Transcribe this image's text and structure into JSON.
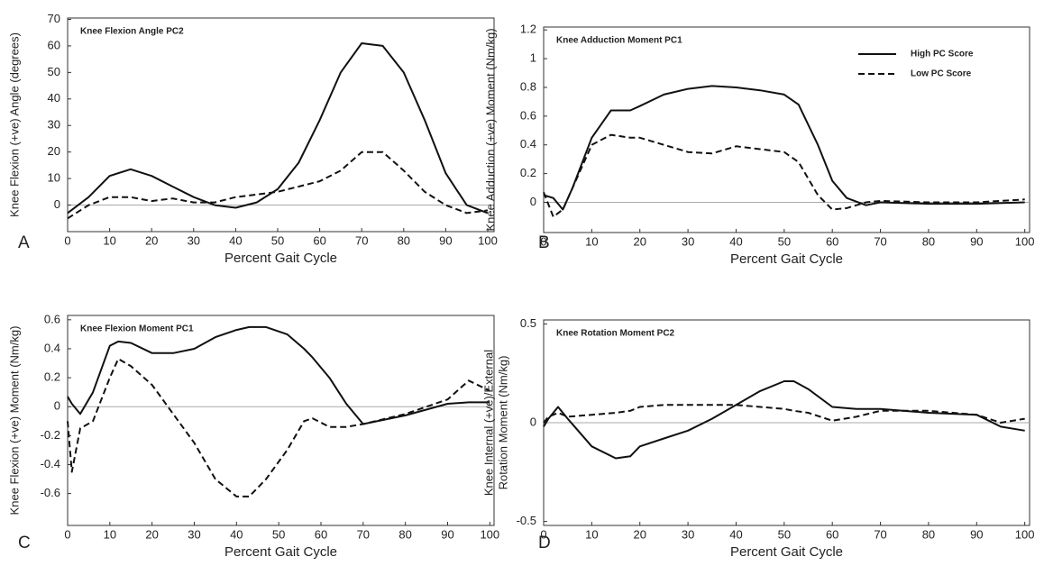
{
  "chart_data": [
    {
      "type": "line",
      "panel_label": "A",
      "title": "Knee Flexion Angle PC2",
      "xlabel": "Percent Gait Cycle",
      "ylabel": [
        "Knee Flexion (+ve) Angle (degrees)"
      ],
      "x": [
        0,
        5,
        10,
        15,
        20,
        25,
        30,
        35,
        40,
        45,
        50,
        55,
        60,
        65,
        70,
        75,
        80,
        85,
        90,
        95,
        100
      ],
      "series": [
        {
          "name": "High PC Score",
          "color": "#111111",
          "dash": "solid",
          "values": [
            -3,
            3,
            11,
            13.5,
            11,
            7,
            3,
            0,
            -1,
            1,
            6,
            16,
            32,
            50,
            61,
            60,
            50,
            32,
            12,
            0,
            -3
          ]
        },
        {
          "name": "Low PC Score",
          "color": "#111111",
          "dash": "dashed",
          "values": [
            -5,
            0,
            3,
            3,
            1.5,
            2.5,
            1,
            1,
            3,
            4,
            5,
            7,
            9,
            13,
            20,
            20,
            13,
            5,
            0,
            -3,
            -2
          ]
        }
      ],
      "xlim": [
        0,
        101.5
      ],
      "ylim": [
        -10,
        70.5
      ],
      "xticks": [
        0,
        10,
        20,
        30,
        40,
        50,
        60,
        70,
        80,
        90,
        100
      ],
      "yticks": [
        0,
        10,
        20,
        30,
        40,
        50,
        60,
        70
      ],
      "zero_line": true
    },
    {
      "type": "line",
      "panel_label": "B",
      "title": "Knee Adduction Moment PC1",
      "xlabel": "Percent Gait Cycle",
      "ylabel": [
        "Knee Adduction (+ve) Moment (Nm/kg)"
      ],
      "x": [
        0,
        2,
        4,
        6,
        10,
        14,
        18,
        20,
        25,
        30,
        35,
        40,
        45,
        50,
        53,
        57,
        60,
        63,
        67,
        70,
        80,
        90,
        100
      ],
      "series": [
        {
          "name": "High PC Score",
          "color": "#111111",
          "dash": "solid",
          "values": [
            0.05,
            0.03,
            -0.05,
            0.1,
            0.45,
            0.64,
            0.64,
            0.67,
            0.75,
            0.79,
            0.81,
            0.8,
            0.78,
            0.75,
            0.68,
            0.4,
            0.15,
            0.03,
            -0.02,
            0,
            -0.01,
            -0.01,
            0
          ]
        },
        {
          "name": "Low PC Score",
          "color": "#111111",
          "dash": "dashed",
          "values": [
            0.07,
            -0.1,
            -0.05,
            0.1,
            0.4,
            0.47,
            0.45,
            0.45,
            0.4,
            0.35,
            0.34,
            0.39,
            0.37,
            0.35,
            0.28,
            0.05,
            -0.05,
            -0.04,
            0,
            0.01,
            0,
            0,
            0.02
          ]
        }
      ],
      "xlim": [
        0,
        101
      ],
      "ylim": [
        -0.21,
        1.22
      ],
      "xticks": [
        0,
        10,
        20,
        30,
        40,
        50,
        60,
        70,
        80,
        90,
        100
      ],
      "yticks": [
        0,
        0.2,
        0.4,
        0.6,
        0.8,
        1,
        1.2
      ],
      "zero_line": true,
      "legend": "upper right"
    },
    {
      "type": "line",
      "panel_label": "C",
      "title": "Knee Flexion Moment PC1",
      "xlabel": "Percent Gait Cycle",
      "ylabel": [
        "Knee Flexion (+ve) Moment (Nm/kg)"
      ],
      "x": [
        0,
        1,
        3,
        6,
        10,
        12,
        15,
        20,
        25,
        30,
        35,
        40,
        43,
        47,
        52,
        56,
        58,
        62,
        66,
        70,
        80,
        90,
        95,
        100
      ],
      "series": [
        {
          "name": "High PC Score",
          "color": "#111111",
          "dash": "solid",
          "values": [
            0.07,
            0.02,
            -0.05,
            0.1,
            0.42,
            0.45,
            0.44,
            0.37,
            0.37,
            0.4,
            0.48,
            0.53,
            0.55,
            0.55,
            0.5,
            0.4,
            0.34,
            0.2,
            0.02,
            -0.12,
            -0.06,
            0.02,
            0.03,
            0.03
          ]
        },
        {
          "name": "Low PC Score",
          "color": "#111111",
          "dash": "dashed",
          "values": [
            -0.1,
            -0.45,
            -0.15,
            -0.1,
            0.2,
            0.33,
            0.28,
            0.15,
            -0.05,
            -0.25,
            -0.5,
            -0.62,
            -0.62,
            -0.5,
            -0.3,
            -0.1,
            -0.08,
            -0.14,
            -0.14,
            -0.12,
            -0.05,
            0.05,
            0.18,
            0.11
          ]
        }
      ],
      "xlim": [
        0,
        101
      ],
      "ylim": [
        -0.82,
        0.63
      ],
      "xticks": [
        0,
        10,
        20,
        30,
        40,
        50,
        60,
        70,
        80,
        90,
        100
      ],
      "yticks": [
        -0.6,
        -0.4,
        -0.2,
        0,
        0.2,
        0.4,
        0.6
      ],
      "zero_line": true
    },
    {
      "type": "line",
      "panel_label": "D",
      "title": "Knee Rotation Moment PC2",
      "xlabel": "Percent Gait Cycle",
      "ylabel": [
        "Knee Internal (+ve)/External",
        "Rotation Moment (Nm/kg)"
      ],
      "x": [
        0,
        1,
        3,
        5,
        10,
        15,
        18,
        20,
        25,
        30,
        35,
        40,
        45,
        50,
        52,
        55,
        60,
        65,
        70,
        80,
        90,
        95,
        100
      ],
      "series": [
        {
          "name": "High PC Score",
          "color": "#111111",
          "dash": "solid",
          "values": [
            -0.02,
            0.02,
            0.08,
            0.02,
            -0.12,
            -0.18,
            -0.17,
            -0.12,
            -0.08,
            -0.04,
            0.02,
            0.09,
            0.16,
            0.21,
            0.21,
            0.17,
            0.08,
            0.07,
            0.07,
            0.05,
            0.04,
            -0.02,
            -0.04
          ]
        },
        {
          "name": "Low PC Score",
          "color": "#111111",
          "dash": "dashed",
          "values": [
            0,
            0.03,
            0.05,
            0.03,
            0.04,
            0.05,
            0.06,
            0.08,
            0.09,
            0.09,
            0.09,
            0.09,
            0.08,
            0.07,
            0.06,
            0.05,
            0.01,
            0.03,
            0.06,
            0.06,
            0.04,
            0,
            0.02
          ]
        }
      ],
      "xlim": [
        0,
        101
      ],
      "ylim": [
        -0.52,
        0.52
      ],
      "xticks": [
        0,
        10,
        20,
        30,
        40,
        50,
        60,
        70,
        80,
        90,
        100
      ],
      "yticks": [
        -0.5,
        0,
        0.5
      ],
      "zero_line": true
    }
  ]
}
